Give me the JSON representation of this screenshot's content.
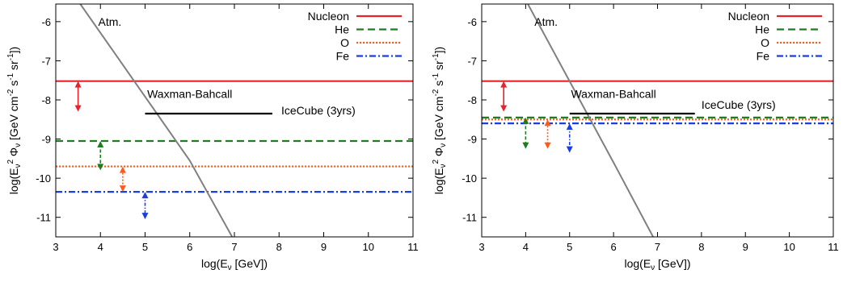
{
  "chart_data": [
    {
      "type": "line",
      "panel": "left",
      "xlabel": "log(E",
      "xlabel_sub": "ν",
      "xlabel_tail": " [GeV])",
      "ylabel": "log(E",
      "ylabel_sub": "ν",
      "ylabel_sup": "2",
      "ylabel_mid": " Φ",
      "ylabel_sub2": "ν",
      "ylabel_tail": " [GeV cm",
      "ylabel_sup2": "-2",
      "ylabel_s": " s",
      "ylabel_sup3": "-1",
      "ylabel_sr": " sr",
      "ylabel_sup4": "-1",
      "ylabel_end": "])",
      "xlim": [
        3,
        11
      ],
      "ylim": [
        -11.5,
        -5.55
      ],
      "xticks": [
        "3",
        "4",
        "5",
        "6",
        "7",
        "8",
        "9",
        "10",
        "11"
      ],
      "yticks": [
        "-6",
        "-7",
        "-8",
        "-9",
        "-10",
        "-11"
      ],
      "xtick_values": [
        3,
        4,
        5,
        6,
        7,
        8,
        9,
        10,
        11
      ],
      "ytick_values": [
        -6,
        -7,
        -8,
        -9,
        -10,
        -11
      ],
      "legend_position": "top-right",
      "series": [
        {
          "name": "Nucleon",
          "color": "#e8212a",
          "dash": "solid",
          "level": -7.52
        },
        {
          "name": "He",
          "color": "#1e7d1e",
          "dash": "dashed",
          "level": -9.05
        },
        {
          "name": "O",
          "color": "#ff5a1e",
          "dash": "dotted",
          "level": -9.7
        },
        {
          "name": "Fe",
          "color": "#1a3fe0",
          "dash": "dashdot",
          "level": -10.35
        }
      ],
      "arrows": [
        {
          "x": 3.5,
          "y_top": -7.52,
          "y_bottom": -8.3,
          "color": "#e8212a",
          "style": "solid"
        },
        {
          "x": 4.0,
          "y_top": -9.05,
          "y_bottom": -9.8,
          "color": "#1e7d1e",
          "style": "dashed"
        },
        {
          "x": 4.5,
          "y_top": -9.7,
          "y_bottom": -10.35,
          "color": "#ff5a1e",
          "style": "dotted"
        },
        {
          "x": 5.0,
          "y_top": -10.35,
          "y_bottom": -11.05,
          "color": "#1a3fe0",
          "style": "dashdot"
        }
      ],
      "atm_curve": {
        "x": [
          3.55,
          6.0,
          6.95
        ],
        "y": [
          -5.55,
          -9.55,
          -11.5
        ],
        "color": "#808080"
      },
      "icecube": {
        "x": [
          5.0,
          7.85
        ],
        "y": -8.35,
        "label": "IceCube (3yrs)",
        "label_x": 8.05,
        "label_y": -8.27
      },
      "annotations": [
        {
          "text": "Atm.",
          "x": 3.95,
          "y": -6.0
        },
        {
          "text": "Waxman-Bahcall",
          "x": 6.0,
          "y": -7.85
        }
      ]
    },
    {
      "type": "line",
      "panel": "right",
      "xlabel": "log(E",
      "xlabel_sub": "ν",
      "xlabel_tail": " [GeV])",
      "ylabel": "log(E",
      "ylabel_sub": "ν",
      "ylabel_sup": "2",
      "ylabel_mid": " Φ",
      "ylabel_sub2": "ν",
      "ylabel_tail": " [GeV cm",
      "ylabel_sup2": "-2",
      "ylabel_s": " s",
      "ylabel_sup3": "-1",
      "ylabel_sr": " sr",
      "ylabel_sup4": "-1",
      "ylabel_end": "])",
      "xlim": [
        3,
        11
      ],
      "ylim": [
        -11.5,
        -5.55
      ],
      "xticks": [
        "3",
        "4",
        "5",
        "6",
        "7",
        "8",
        "9",
        "10",
        "11"
      ],
      "yticks": [
        "-6",
        "-7",
        "-8",
        "-9",
        "-10",
        "-11"
      ],
      "xtick_values": [
        3,
        4,
        5,
        6,
        7,
        8,
        9,
        10,
        11
      ],
      "ytick_values": [
        -6,
        -7,
        -8,
        -9,
        -10,
        -11
      ],
      "legend_position": "top-right",
      "series": [
        {
          "name": "Nucleon",
          "color": "#e8212a",
          "dash": "solid",
          "level": -7.52
        },
        {
          "name": "He",
          "color": "#1e7d1e",
          "dash": "dashed",
          "level": -8.45
        },
        {
          "name": "O",
          "color": "#ff5a1e",
          "dash": "dotted",
          "level": -8.5
        },
        {
          "name": "Fe",
          "color": "#1a3fe0",
          "dash": "dashdot",
          "level": -8.6
        }
      ],
      "arrows": [
        {
          "x": 3.5,
          "y_top": -7.52,
          "y_bottom": -8.3,
          "color": "#e8212a",
          "style": "solid"
        },
        {
          "x": 4.0,
          "y_top": -8.45,
          "y_bottom": -9.25,
          "color": "#1e7d1e",
          "style": "dashed"
        },
        {
          "x": 4.5,
          "y_top": -8.5,
          "y_bottom": -9.25,
          "color": "#ff5a1e",
          "style": "dotted"
        },
        {
          "x": 5.0,
          "y_top": -8.6,
          "y_bottom": -9.35,
          "color": "#1a3fe0",
          "style": "dashdot"
        }
      ],
      "atm_curve": {
        "x": [
          4.05,
          6.0,
          6.9
        ],
        "y": [
          -5.55,
          -9.6,
          -11.5
        ],
        "color": "#808080"
      },
      "icecube": {
        "x": [
          5.0,
          7.85
        ],
        "y": -8.35,
        "label": "IceCube (3yrs)",
        "label_x": 8.0,
        "label_y": -8.12
      },
      "annotations": [
        {
          "text": "Atm.",
          "x": 4.2,
          "y": -6.0
        },
        {
          "text": "Waxman-Bahcall",
          "x": 6.0,
          "y": -7.85
        }
      ]
    }
  ]
}
